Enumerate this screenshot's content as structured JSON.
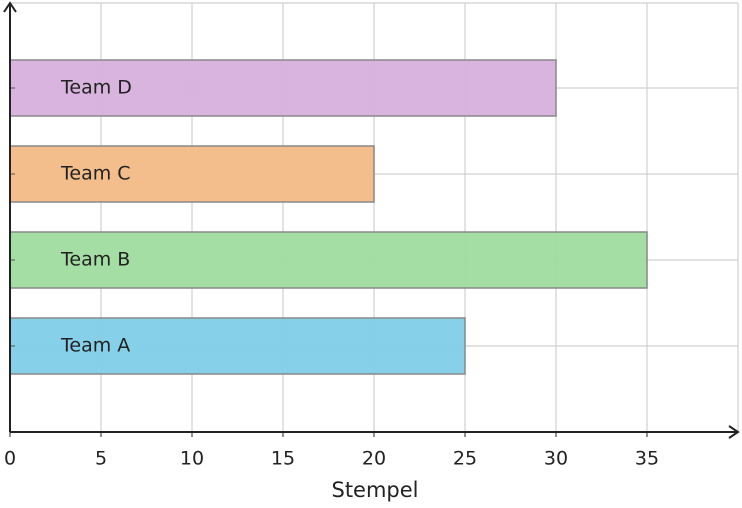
{
  "chart_data": {
    "type": "bar",
    "orientation": "horizontal",
    "xlabel": "Stempel",
    "categories": [
      "Team A",
      "Team B",
      "Team C",
      "Team D"
    ],
    "values": [
      25,
      35,
      20,
      30
    ],
    "colors": [
      "#7fcfe8",
      "#a0dca0",
      "#f2bb85",
      "#d6b0dc"
    ],
    "xlim": [
      0,
      40
    ],
    "xticks": [
      0,
      5,
      10,
      15,
      20,
      25,
      30,
      35
    ],
    "grid": true
  }
}
